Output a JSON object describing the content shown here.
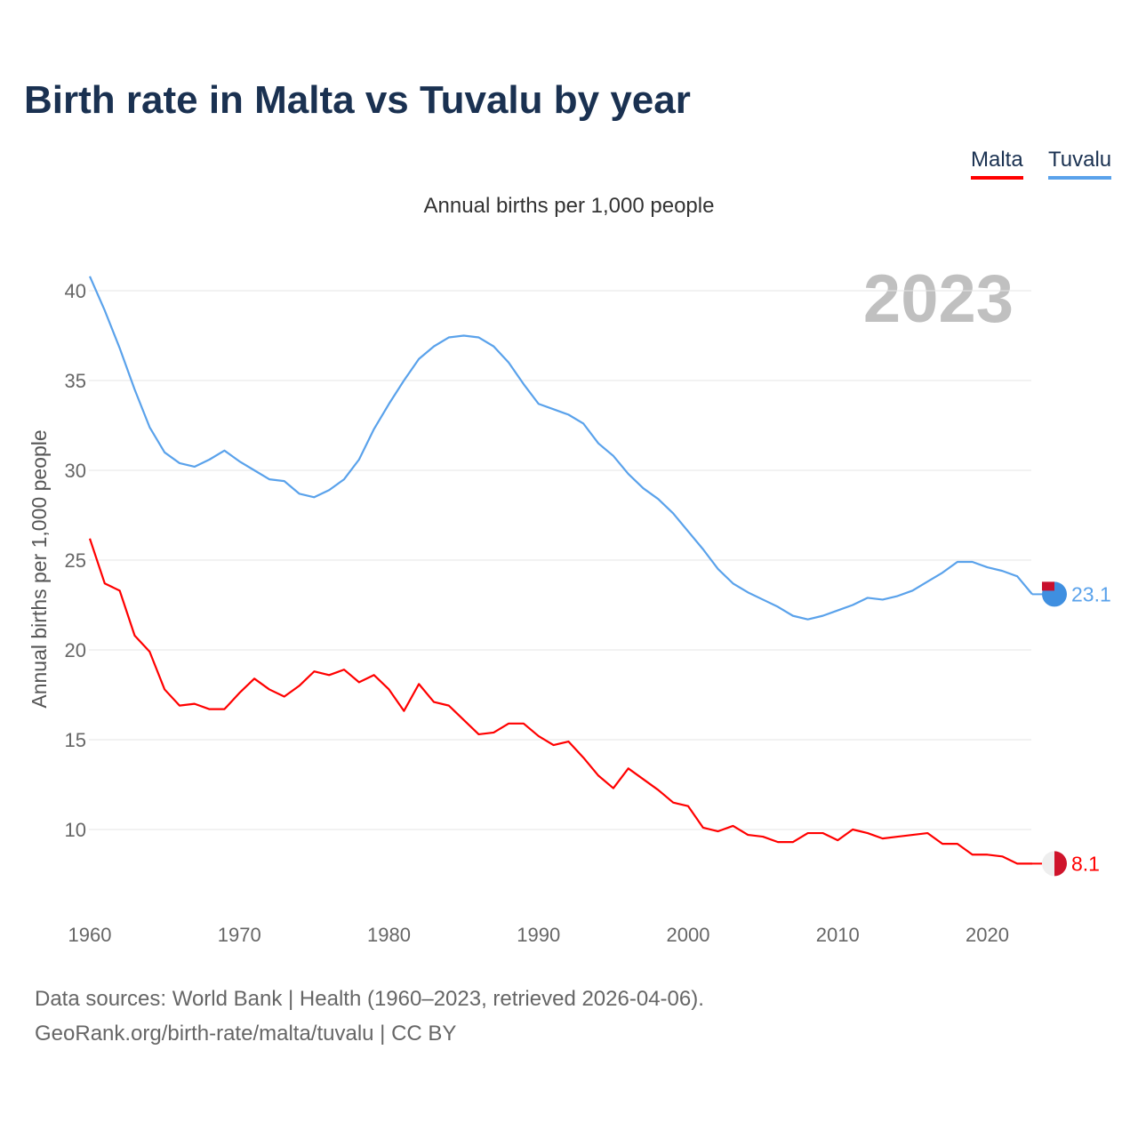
{
  "title": "Birth rate in Malta vs Tuvalu by year",
  "subtitle": "Annual births per 1,000 people",
  "year_watermark": "2023",
  "footer": {
    "line1": "Data sources: World Bank | Health (1960–2023, retrieved 2026-04-06).",
    "line2": "GeoRank.org/birth-rate/malta/tuvalu | CC BY"
  },
  "chart_data": {
    "type": "line",
    "title": "Birth rate in Malta vs Tuvalu by year",
    "xlabel": "",
    "ylabel": "Annual births per 1,000 people",
    "xlim": [
      1960,
      2023
    ],
    "ylim": [
      10,
      40
    ],
    "x_ticks": [
      "1960",
      "1970",
      "1980",
      "1990",
      "2000",
      "2010",
      "2020"
    ],
    "y_ticks": [
      "10",
      "15",
      "20",
      "25",
      "30",
      "35",
      "40"
    ],
    "grid": true,
    "legend": "top-right",
    "x": [
      1960,
      1961,
      1962,
      1963,
      1964,
      1965,
      1966,
      1967,
      1968,
      1969,
      1970,
      1971,
      1972,
      1973,
      1974,
      1975,
      1976,
      1977,
      1978,
      1979,
      1980,
      1981,
      1982,
      1983,
      1984,
      1985,
      1986,
      1987,
      1988,
      1989,
      1990,
      1991,
      1992,
      1993,
      1994,
      1995,
      1996,
      1997,
      1998,
      1999,
      2000,
      2001,
      2002,
      2003,
      2004,
      2005,
      2006,
      2007,
      2008,
      2009,
      2010,
      2011,
      2012,
      2013,
      2014,
      2015,
      2016,
      2017,
      2018,
      2019,
      2020,
      2021,
      2022,
      2023
    ],
    "series": [
      {
        "name": "Malta",
        "color": "#ff0000",
        "end_label": "8.1",
        "values": [
          26.2,
          23.7,
          23.3,
          20.8,
          19.9,
          17.8,
          16.9,
          17.0,
          16.7,
          16.7,
          17.6,
          18.4,
          17.8,
          17.4,
          18.0,
          18.8,
          18.6,
          18.9,
          18.2,
          18.6,
          17.8,
          16.6,
          18.1,
          17.1,
          16.9,
          16.1,
          15.3,
          15.4,
          15.9,
          15.9,
          15.2,
          14.7,
          14.9,
          14.0,
          13.0,
          12.3,
          13.4,
          12.8,
          12.2,
          11.5,
          11.3,
          10.1,
          9.9,
          10.2,
          9.7,
          9.6,
          9.3,
          9.3,
          9.8,
          9.8,
          9.4,
          10.0,
          9.8,
          9.5,
          9.6,
          9.7,
          9.8,
          9.2,
          9.2,
          8.6,
          8.6,
          8.5,
          8.1,
          8.1
        ]
      },
      {
        "name": "Tuvalu",
        "color": "#5aa2eb",
        "end_label": "23.1",
        "values": [
          40.8,
          38.9,
          36.8,
          34.5,
          32.4,
          31.0,
          30.4,
          30.2,
          30.6,
          31.1,
          30.5,
          30.0,
          29.5,
          29.4,
          28.7,
          28.5,
          28.9,
          29.5,
          30.6,
          32.3,
          33.7,
          35.0,
          36.2,
          36.9,
          37.4,
          37.5,
          37.4,
          36.9,
          36.0,
          34.8,
          33.7,
          33.4,
          33.1,
          32.6,
          31.5,
          30.8,
          29.8,
          29.0,
          28.4,
          27.6,
          26.6,
          25.6,
          24.5,
          23.7,
          23.2,
          22.8,
          22.4,
          21.9,
          21.7,
          21.9,
          22.2,
          22.5,
          22.9,
          22.8,
          23.0,
          23.3,
          23.8,
          24.3,
          24.9,
          24.9,
          24.6,
          24.4,
          24.1,
          23.1
        ]
      }
    ]
  }
}
